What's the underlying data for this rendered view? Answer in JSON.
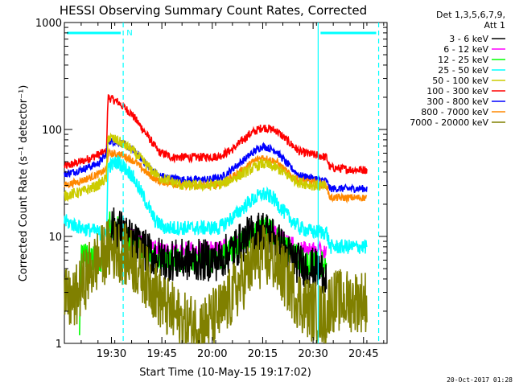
{
  "chart_data": {
    "type": "line",
    "title": "HESSI Observing Summary Count Rates, Corrected",
    "xlabel": "Start Time (10-May-15 19:17:02)",
    "ylabel": "Corrected Count Rate (s⁻¹ detector⁻¹)",
    "x_unit": "minutes after 19:17:02 UT",
    "xlim": [
      0,
      96
    ],
    "ylim": [
      1,
      1000
    ],
    "yscale": "log",
    "x_ticks": [
      {
        "value": 14,
        "label": "19:30"
      },
      {
        "value": 29,
        "label": "19:45"
      },
      {
        "value": 44,
        "label": "20:00"
      },
      {
        "value": 59,
        "label": "20:15"
      },
      {
        "value": 74,
        "label": "20:30"
      },
      {
        "value": 89,
        "label": "20:45"
      }
    ],
    "y_ticks": [
      {
        "value": 1,
        "label": "1"
      },
      {
        "value": 10,
        "label": "10"
      },
      {
        "value": 100,
        "label": "100"
      },
      {
        "value": 1000,
        "label": "1000"
      }
    ],
    "grid": false,
    "legend": {
      "placement": "right",
      "header": [
        "Det 1,3,5,6,7,9,",
        "Att 1"
      ],
      "entries": [
        {
          "label": "3 - 6 keV",
          "color": "#000000"
        },
        {
          "label": "6 - 12 keV",
          "color": "#ff00ff"
        },
        {
          "label": "12 - 25 keV",
          "color": "#00ff00"
        },
        {
          "label": "25 - 50 keV",
          "color": "#00ffff"
        },
        {
          "label": "50 - 100 keV",
          "color": "#cccc00"
        },
        {
          "label": "100 - 300 keV",
          "color": "#ff0000"
        },
        {
          "label": "300 - 800 keV",
          "color": "#0000ff"
        },
        {
          "label": "800 - 7000 keV",
          "color": "#ff8800"
        },
        {
          "label": "7000 - 20000 keV",
          "color": "#808000"
        }
      ]
    },
    "series": [
      {
        "name": "100 - 300 keV",
        "color": "#ff0000",
        "noise": 0.04,
        "points": [
          [
            0,
            45
          ],
          [
            5,
            50
          ],
          [
            10,
            58
          ],
          [
            12.5,
            62
          ],
          [
            13,
            200
          ],
          [
            16,
            180
          ],
          [
            20,
            140
          ],
          [
            25,
            85
          ],
          [
            28,
            62
          ],
          [
            32,
            55
          ],
          [
            40,
            55
          ],
          [
            46,
            56
          ],
          [
            50,
            65
          ],
          [
            55,
            90
          ],
          [
            59,
            105
          ],
          [
            63,
            98
          ],
          [
            67,
            75
          ],
          [
            70,
            62
          ],
          [
            74,
            58
          ],
          [
            78,
            55
          ],
          [
            79,
            44
          ],
          [
            86,
            42
          ],
          [
            90,
            42
          ]
        ]
      },
      {
        "name": "300 - 800 keV",
        "color": "#0000ff",
        "noise": 0.035,
        "points": [
          [
            0,
            38
          ],
          [
            5,
            42
          ],
          [
            10,
            48
          ],
          [
            12.5,
            58
          ],
          [
            13,
            78
          ],
          [
            17,
            75
          ],
          [
            21,
            62
          ],
          [
            25,
            45
          ],
          [
            28,
            37
          ],
          [
            35,
            34
          ],
          [
            43,
            34
          ],
          [
            47,
            36
          ],
          [
            52,
            48
          ],
          [
            57,
            64
          ],
          [
            59,
            70
          ],
          [
            63,
            63
          ],
          [
            67,
            45
          ],
          [
            70,
            37
          ],
          [
            74,
            35
          ],
          [
            78,
            33
          ],
          [
            79,
            28
          ],
          [
            90,
            28
          ]
        ]
      },
      {
        "name": "800 - 7000 keV",
        "color": "#ff8800",
        "noise": 0.035,
        "points": [
          [
            0,
            30
          ],
          [
            5,
            33
          ],
          [
            10,
            38
          ],
          [
            12.5,
            42
          ],
          [
            13,
            60
          ],
          [
            17,
            58
          ],
          [
            21,
            50
          ],
          [
            25,
            38
          ],
          [
            28,
            33
          ],
          [
            35,
            30
          ],
          [
            43,
            30
          ],
          [
            47,
            31
          ],
          [
            52,
            40
          ],
          [
            57,
            52
          ],
          [
            59,
            55
          ],
          [
            63,
            50
          ],
          [
            67,
            38
          ],
          [
            70,
            33
          ],
          [
            74,
            32
          ],
          [
            78,
            30
          ],
          [
            79,
            23
          ],
          [
            90,
            23
          ]
        ]
      },
      {
        "name": "50 - 100 keV",
        "color": "#cccc00",
        "noise": 0.05,
        "points": [
          [
            0,
            24
          ],
          [
            5,
            26
          ],
          [
            10,
            30
          ],
          [
            12.5,
            35
          ],
          [
            13,
            85
          ],
          [
            16,
            78
          ],
          [
            20,
            65
          ],
          [
            24,
            48
          ],
          [
            28,
            36
          ],
          [
            35,
            30
          ],
          [
            43,
            30
          ],
          [
            47,
            31
          ],
          [
            52,
            37
          ],
          [
            57,
            45
          ],
          [
            59,
            48
          ],
          [
            63,
            44
          ],
          [
            67,
            36
          ],
          [
            70,
            32
          ],
          [
            74,
            30
          ],
          [
            78,
            29
          ]
        ]
      },
      {
        "name": "25 - 50 keV",
        "color": "#00ffff",
        "noise": 0.07,
        "points": [
          [
            0,
            14
          ],
          [
            5,
            12
          ],
          [
            10,
            11
          ],
          [
            12.5,
            10
          ],
          [
            13,
            45
          ],
          [
            16,
            50
          ],
          [
            20,
            38
          ],
          [
            24,
            22
          ],
          [
            27,
            14
          ],
          [
            30,
            12
          ],
          [
            40,
            12
          ],
          [
            46,
            12
          ],
          [
            50,
            15
          ],
          [
            55,
            21
          ],
          [
            59,
            25
          ],
          [
            62,
            23
          ],
          [
            66,
            16
          ],
          [
            70,
            12
          ],
          [
            74,
            11
          ],
          [
            78,
            11
          ],
          [
            79,
            8
          ],
          [
            90,
            8
          ]
        ]
      },
      {
        "name": "6 - 12 keV",
        "color": "#ff00ff",
        "noise": 0.08,
        "points": [
          [
            13.5,
            12
          ],
          [
            16,
            11
          ],
          [
            20,
            10
          ],
          [
            25,
            8
          ],
          [
            30,
            7.5
          ],
          [
            40,
            7.5
          ],
          [
            46,
            7.5
          ],
          [
            50,
            8.5
          ],
          [
            55,
            10.5
          ],
          [
            59,
            11.5
          ],
          [
            62,
            11
          ],
          [
            66,
            9
          ],
          [
            70,
            7.5
          ],
          [
            74,
            7.5
          ],
          [
            78,
            7
          ]
        ]
      },
      {
        "name": "12 - 25 keV",
        "color": "#00ff00",
        "noise": 0.12,
        "points": [
          [
            4.5,
            1
          ],
          [
            5,
            7
          ],
          [
            7,
            6.5
          ],
          [
            10,
            6
          ],
          [
            12.5,
            6
          ],
          [
            13.5,
            13
          ],
          [
            16,
            12
          ],
          [
            20,
            9
          ],
          [
            25,
            7
          ],
          [
            30,
            6
          ],
          [
            40,
            6
          ],
          [
            46,
            6
          ],
          [
            50,
            7.5
          ],
          [
            55,
            10
          ],
          [
            59,
            12
          ],
          [
            62,
            11
          ],
          [
            66,
            8
          ],
          [
            70,
            6
          ],
          [
            74,
            5.5
          ],
          [
            78,
            5.5
          ]
        ]
      },
      {
        "name": "3 - 6 keV",
        "color": "#000000",
        "noise": 0.2,
        "points": [
          [
            13.5,
            12
          ],
          [
            16,
            12
          ],
          [
            20,
            9
          ],
          [
            25,
            7
          ],
          [
            30,
            6
          ],
          [
            40,
            6
          ],
          [
            46,
            6
          ],
          [
            50,
            7.5
          ],
          [
            55,
            10
          ],
          [
            59,
            11.5
          ],
          [
            62,
            10
          ],
          [
            66,
            7
          ],
          [
            70,
            5.5
          ],
          [
            74,
            5
          ],
          [
            78,
            4.5
          ]
        ]
      },
      {
        "name": "7000 - 20000 keV",
        "color": "#808000",
        "noise": 0.3,
        "points": [
          [
            0,
            2.5
          ],
          [
            3,
            2.5
          ],
          [
            5,
            3.5
          ],
          [
            8,
            5
          ],
          [
            11,
            6.5
          ],
          [
            13,
            7.5
          ],
          [
            16,
            7.5
          ],
          [
            20,
            6
          ],
          [
            25,
            4
          ],
          [
            30,
            2.2
          ],
          [
            36,
            1.5
          ],
          [
            42,
            1.5
          ],
          [
            47,
            2
          ],
          [
            52,
            3.5
          ],
          [
            56,
            5.5
          ],
          [
            59,
            6.5
          ],
          [
            62,
            6
          ],
          [
            66,
            4
          ],
          [
            70,
            2.5
          ],
          [
            74,
            2
          ],
          [
            78,
            1.8
          ],
          [
            79,
            2.5
          ],
          [
            90,
            2.5
          ]
        ]
      }
    ],
    "annotations": [
      {
        "type": "vline",
        "x": 17.5,
        "style": "dashed",
        "color": "#00ffff"
      },
      {
        "type": "vline",
        "x": 75.5,
        "style": "solid",
        "color": "#00ffff"
      },
      {
        "type": "vline",
        "x": 93.5,
        "style": "dashed",
        "color": "#00ffff"
      },
      {
        "type": "hbar",
        "from": 0,
        "to": 17.5,
        "color": "#00ffff"
      },
      {
        "type": "hbar",
        "from": 75.5,
        "to": 93.5,
        "color": "#00ffff"
      },
      {
        "type": "text",
        "x": 18.5,
        "label": "N",
        "color": "#00ffff"
      }
    ],
    "timestamp": "20-Oct-2017 01:28"
  }
}
